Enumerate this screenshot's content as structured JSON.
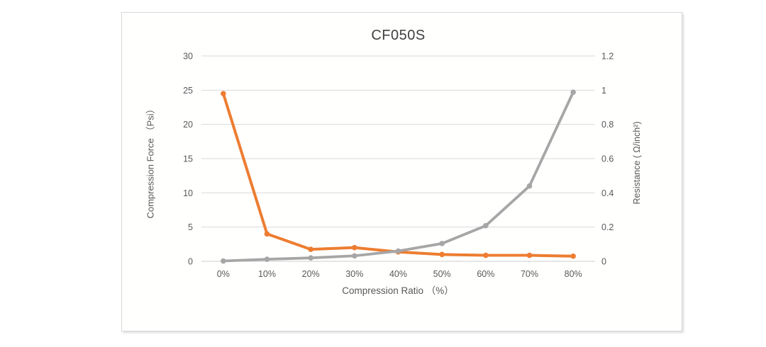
{
  "frame": {
    "background_color": "#ffffff",
    "border_color": "#d9d9d9"
  },
  "chart_data": {
    "type": "line",
    "title": "CF050S",
    "legend": "none",
    "grid": true,
    "grid_color": "#d9d9d9",
    "axis_line_color": "#cfcdcd",
    "categories": [
      "0%",
      "10%",
      "20%",
      "30%",
      "40%",
      "50%",
      "60%",
      "70%",
      "80%"
    ],
    "x_axis": {
      "label": "Compression Ratio （%）"
    },
    "y_left": {
      "label": "Compression Force （Psi）",
      "ticks": [
        0,
        5,
        10,
        15,
        20,
        25,
        30
      ],
      "range": [
        0,
        30
      ]
    },
    "y_right": {
      "label": "Resistance ( Ω/inch²)",
      "ticks": [
        0,
        0.2,
        0.4,
        0.6,
        0.8,
        1,
        1.2
      ],
      "range": [
        0,
        1.2
      ]
    },
    "series": [
      {
        "name": "Resistance",
        "axis": "right",
        "color": "#ed7d31",
        "line_width": 4,
        "marker_radius": 3.8,
        "values": [
          0.98,
          0.16,
          0.07,
          0.08,
          0.055,
          0.04,
          0.035,
          0.035,
          0.03
        ]
      },
      {
        "name": "Compression Force",
        "axis": "left",
        "color": "#a6a6a6",
        "line_width": 3.8,
        "marker_radius": 3.8,
        "values": [
          0.05,
          0.3,
          0.5,
          0.8,
          1.5,
          2.6,
          5.2,
          11,
          24.7
        ]
      }
    ]
  }
}
